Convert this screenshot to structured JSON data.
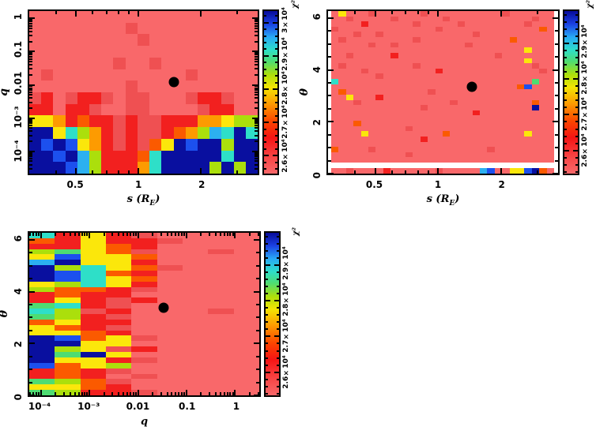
{
  "figure": {
    "background": "#ffffff"
  },
  "palette": {
    "S": "#f9686a",
    "s": "#ef5052",
    "R": "#f2201f",
    "o": "#fb5a00",
    "O": "#fd9b01",
    "Y": "#fbe70b",
    "G": "#abdf0c",
    "g": "#4edc72",
    "C": "#2edfc8",
    "c": "#2cb0f0",
    "B": "#1c50ee",
    "N": "#090f9f",
    "W": "#ffffff"
  },
  "colorbar_gradient": [
    [
      "#f9686a",
      0
    ],
    [
      "#f74646",
      10
    ],
    [
      "#f51414",
      22
    ],
    [
      "#fb4400",
      32
    ],
    [
      "#fd9b01",
      43
    ],
    [
      "#f3e403",
      53
    ],
    [
      "#abdf0c",
      61
    ],
    [
      "#4edc72",
      69
    ],
    [
      "#2edfc8",
      76
    ],
    [
      "#28a9f5",
      84
    ],
    [
      "#1b41e2",
      92
    ],
    [
      "#070b99",
      100
    ]
  ],
  "chart_data": [
    {
      "type": "heatmap",
      "position": "top-left",
      "xlabel": {
        "pre": "s (R",
        "sub": "E",
        "post": ")"
      },
      "ylabel": "q",
      "x_axis": {
        "scale": "log",
        "min": 0.297,
        "max": 3.76,
        "majors": [
          [
            0.5,
            "0.5"
          ],
          [
            1,
            "1"
          ],
          [
            2,
            "2"
          ]
        ]
      },
      "y_axis": {
        "scale": "log",
        "min": 2.14e-05,
        "max": 1.66,
        "majors": [
          [
            1,
            "1"
          ],
          [
            0.1,
            "0.1"
          ],
          [
            0.01,
            "0.01"
          ],
          [
            0.001,
            "10⁻³"
          ],
          [
            0.0001,
            "10⁻⁴"
          ]
        ]
      },
      "colorbar": {
        "label": "χ²",
        "min": 25460,
        "max": 30350,
        "minor_step": 200,
        "majors": [
          [
            26000,
            "2.6×10⁴"
          ],
          [
            27000,
            "2.7×10⁴"
          ],
          [
            28000,
            "2.8×10⁴"
          ],
          [
            29000,
            "2.9×10⁴"
          ],
          [
            30000,
            "3×10⁴"
          ]
        ]
      },
      "marker": {
        "s": 1.47,
        "q": 0.011,
        "fx": 0.632,
        "fy": 0.438
      },
      "grid_rows": [
        "SSSSSSSSSSSSSSSSSSS",
        "SSSSSSSSsSSSSSSSSSS",
        "SSSSSSSSSsSSSSSSSSS",
        "SSSSSSSSSSSSSSSSSSS",
        "SSSSSSSsSSsSSSSSSSS",
        "SsSSSSSSSSSSSsSSSSS",
        "SSSSSSSSsSSSSSSSSSS",
        "sRSsRRsSssSSSsRRsSS",
        "RRSRRsSSssSSSSsRRSS",
        "YYORoRRsRssRRROOYGG",
        "NNYCGORsRssRoOGcCNC",
        "NBNBYORsRsoYNBNNGNN",
        "NNBNcGRRRoCNNNNNCNN",
        "NNNBcGRRROCNNNNGNGN"
      ]
    },
    {
      "type": "heatmap",
      "position": "top-right",
      "xlabel": {
        "pre": "s (R",
        "sub": "E",
        "post": ")"
      },
      "ylabel": "θ",
      "x_axis": {
        "scale": "log",
        "min": 0.297,
        "max": 3.76,
        "majors": [
          [
            0.5,
            "0.5"
          ],
          [
            1,
            "1"
          ],
          [
            2,
            "2"
          ]
        ]
      },
      "y_axis": {
        "scale": "linear",
        "min": 0,
        "max": 6.27,
        "minor_step": 0.5,
        "majors": [
          [
            0,
            "0"
          ],
          [
            2,
            "2"
          ],
          [
            4,
            "4"
          ],
          [
            6,
            "6"
          ]
        ]
      },
      "colorbar": {
        "label": "χ²",
        "min": 25350,
        "max": 29910,
        "minor_step": 200,
        "majors": [
          [
            26000,
            "2.6×10⁴"
          ],
          [
            27000,
            "2.7×10⁴"
          ],
          [
            28000,
            "2.8×10⁴"
          ],
          [
            29000,
            "2.9×10⁴"
          ]
        ]
      },
      "marker": {
        "s": 1.47,
        "theta": 3.34,
        "fx": 0.627,
        "fy": 0.467
      },
      "grid_rows": [
        "SYSSSsSSSSSSsSSSSSSSSSSsSSSSSS",
        "SSsSSSSSsSSSSSSsSSSSSSSSSSSsSS",
        "SSSSRSSSSSSsSSSSSsSSSSSSSSsSSS",
        "sSSSSSSSSSSSSSsSSSSSSSSSSSSSoS",
        "SSSsSSsSSSSSSSSSSSSsSSSSSSSSSS",
        "SsSSSSSSSSSsSSSSSSSSSSSSoSSSSS",
        "SSSSSsSSsSSSSSSSSSsSSSSSSSSSSS",
        "SSSSSSSSSSSSSSSSSSSSSSSSSSYSSS",
        "SSsSSSSSRSSSSSSSSSSSSSsSSSSSSS",
        "SSSSSSSSSSSSSSSSSSSSSSSSSSYSSS",
        "SsSSSSSSSSSsSSSSSSSSSSSSSSSsSS",
        "SSSSsSSSSSSSSSRSSSSSSSSSSSSSsS",
        "SSSSSSsSSSSSSSSSSSSSSSSSSSSSSS",
        "CSSSSSSSSSSSSSSSSSSSSSSSSSSgSS",
        "SSSSSSSSSSSSSSSSSSSSSSSSSoBSSS",
        "SoSSSSSSSSSSSsSSSSSSSSSSSSSSSS",
        "SSYSSSRSSSSSSSSSSSSSSSSSSSSSSS",
        "SSSsSSSSSSSSSSSSsSSSSSSSSSSoSS",
        "SSSSSSSSSSSSsSSSSSSSSSSSSSSNSS",
        "SSSSSSSSSSSSSSSSSSSRSSSSSSSSSS",
        "SSSSSSSSSSSSSSSSSSSSSSSSSSSSSS",
        "SSSoSSSSSSSSSSSSSSSSSSSSSSSSSS",
        "SSSSSSSSSSsSSSSSSSSSSSSSSSSSSS",
        "SSSSYSSSSSSSSSSoSSSSSSSSSSYSSS",
        "SSSSSSSSSSSSRSSSSSSSSSSSSSSSSS",
        "SSSSSSSSSSSSSSSSSSSSSSSSSSSSSS",
        "oSSSSsSSSSSSSSSSSSSSSsSSSSSSSS",
        "SSSSSSSSSSsSSSSSSSSSSSSSSSSSSS",
        "SSSSSSSSSSSSSSSSSSSSSSSSSSSSSS"
      ],
      "grid_bottom_row": "SSsSSSSRSSSSSSsSSSSScBSSYYBNoS"
    },
    {
      "type": "heatmap",
      "position": "bottom-left",
      "xlabel": {
        "pre": "q",
        "sub": "",
        "post": ""
      },
      "ylabel": "θ",
      "x_axis": {
        "scale": "log",
        "min": 5.73e-05,
        "max": 3.16,
        "majors": [
          [
            0.0001,
            "10⁻⁴"
          ],
          [
            0.001,
            "10⁻³"
          ],
          [
            0.01,
            "0.01"
          ],
          [
            0.1,
            "0.1"
          ],
          [
            1,
            "1"
          ]
        ]
      },
      "y_axis": {
        "scale": "linear",
        "min": 0,
        "max": 6.27,
        "minor_step": 0.5,
        "majors": [
          [
            0,
            "0"
          ],
          [
            2,
            "2"
          ],
          [
            4,
            "4"
          ],
          [
            6,
            "6"
          ]
        ]
      },
      "colorbar": {
        "label": "χ²",
        "min": 25350,
        "max": 29910,
        "minor_step": 200,
        "majors": [
          [
            26000,
            "2.6×10⁴"
          ],
          [
            27000,
            "2.7×10⁴"
          ],
          [
            28000,
            "2.8×10⁴"
          ],
          [
            29000,
            "2.9×10⁴"
          ]
        ]
      },
      "marker": {
        "q": 0.03,
        "theta": 3.34,
        "fx": 0.583,
        "fy": 0.462
      },
      "grid_rows": [
        "CRYRsSSSS",
        "oRYRRsSSS",
        "RRYoRSSSS",
        "GgYosSSsS",
        "YBYYoSSSS",
        "cNYYRSSSS",
        "NGCYosSSS",
        "NBCoRSSSS",
        "NBCYoSSSS",
        "YGCYRSSSS",
        "GooRsSSSS",
        "RoRRSSSSS",
        "RYRsRSSSS",
        "gCRsSSSSS",
        "CGsRSSSsS",
        "gGRsSSSSS",
        "oYRRSSSSS",
        "YoRsSSSSS",
        "YYoRSSSSS",
        "NBoYsSSSS",
        "NNYYSSSSS",
        "NGYsRSSSS",
        "NgNYSSSSS",
        "NYYRsSSSS",
        "BoYGSSSSS",
        "RoRsSSSSS",
        "RoRSsSSSS",
        "gGosSSSSS",
        "YYoRSSSSS",
        "gGRRsSSSS"
      ]
    }
  ]
}
